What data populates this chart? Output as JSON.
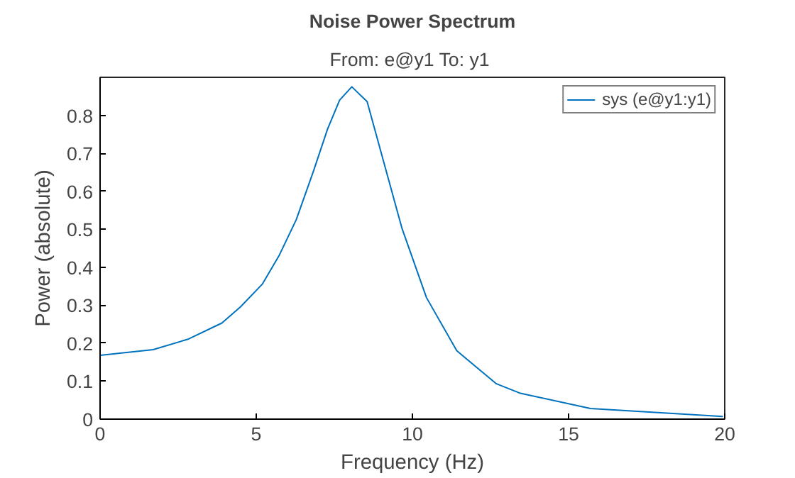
{
  "chart_data": {
    "type": "line",
    "title": "Noise Power Spectrum",
    "subtitle": "From: e@y1  To: y1",
    "xlabel": "Frequency (Hz)",
    "ylabel": "Power (absolute)",
    "x": [
      0,
      1.7,
      2.8,
      3.9,
      4.5,
      5.2,
      5.74,
      6.28,
      6.82,
      7.28,
      7.67,
      8.06,
      8.55,
      9.66,
      10.45,
      11.42,
      12.69,
      13.46,
      15.7,
      19.94
    ],
    "series": [
      {
        "name": "sys (e@y1:y1)",
        "color": "#0072bd",
        "values": [
          0.168,
          0.183,
          0.21,
          0.253,
          0.296,
          0.356,
          0.432,
          0.525,
          0.65,
          0.763,
          0.84,
          0.875,
          0.836,
          0.504,
          0.32,
          0.18,
          0.093,
          0.068,
          0.028,
          0.007
        ]
      }
    ],
    "xlim": [
      0,
      20
    ],
    "xticks": [
      0,
      5,
      10,
      15,
      20
    ],
    "ylim": [
      0,
      0.9
    ],
    "yticks": [
      0,
      0.1,
      0.2,
      0.3,
      0.4,
      0.5,
      0.6,
      0.7,
      0.8
    ],
    "grid": false,
    "legend": "top right",
    "line_style": "solid",
    "marker": "none"
  }
}
